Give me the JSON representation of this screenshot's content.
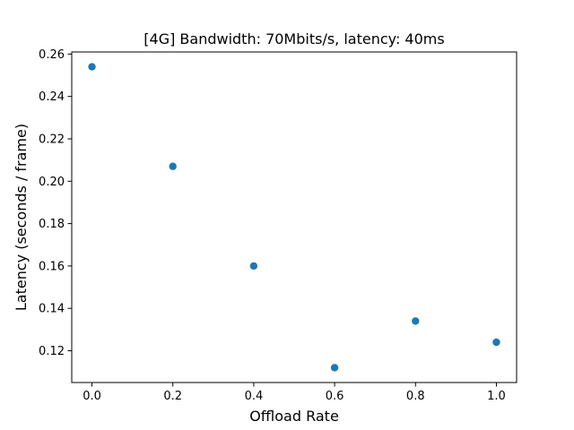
{
  "chart_data": {
    "type": "scatter",
    "title": "[4G] Bandwidth: 70Mbits/s, latency: 40ms",
    "xlabel": "Offload Rate",
    "ylabel": "Latency (seconds / frame)",
    "xlim": [
      -0.05,
      1.05
    ],
    "ylim": [
      0.105,
      0.261
    ],
    "xticks": [
      0.0,
      0.2,
      0.4,
      0.6,
      0.8,
      1.0
    ],
    "xtick_labels": [
      "0.0",
      "0.2",
      "0.4",
      "0.6",
      "0.8",
      "1.0"
    ],
    "yticks": [
      0.12,
      0.14,
      0.16,
      0.18,
      0.2,
      0.22,
      0.24,
      0.26
    ],
    "ytick_labels": [
      "0.12",
      "0.14",
      "0.16",
      "0.18",
      "0.20",
      "0.22",
      "0.24",
      "0.26"
    ],
    "grid": false,
    "x": [
      0.0,
      0.2,
      0.4,
      0.6,
      0.8,
      1.0
    ],
    "y": [
      0.254,
      0.207,
      0.16,
      0.112,
      0.134,
      0.124
    ],
    "marker_color": "#1f77b4"
  }
}
